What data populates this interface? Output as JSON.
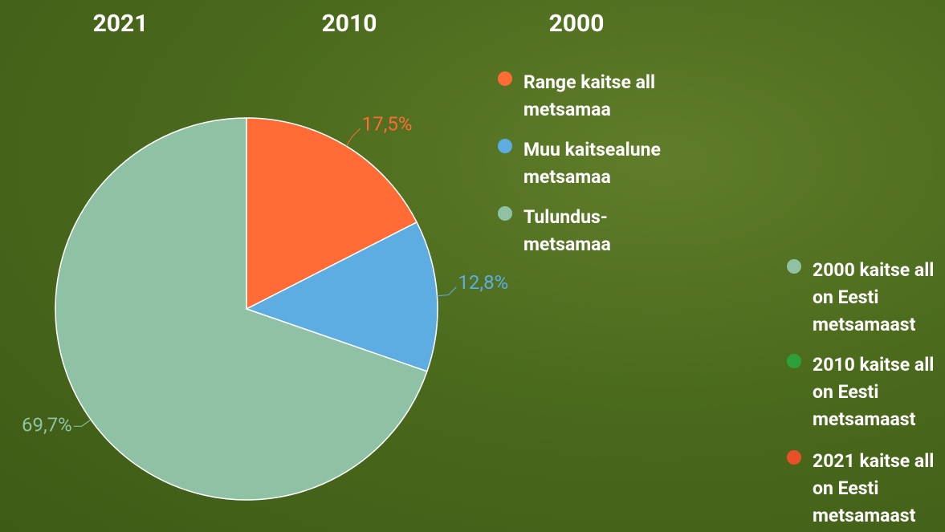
{
  "tabs": [
    "2021",
    "2010",
    "2000"
  ],
  "chart_data": {
    "type": "pie",
    "categories": [
      "Range kaitse all metsamaa",
      "Muu kaitsealune metsamaa",
      "Tulundus-metsamaa"
    ],
    "values": [
      17.5,
      12.8,
      69.7
    ],
    "value_labels": [
      "17,5%",
      "12,8%",
      "69,7%"
    ],
    "colors": [
      "#ff6b35",
      "#5dade2",
      "#8fc1a4"
    ]
  },
  "side_legend": [
    {
      "label": "2000 kaitse all on Eesti metsamaast",
      "color": "#8fc1a4"
    },
    {
      "label": "2010 kaitse all on Eesti metsamaast",
      "color": "#2ea03a"
    },
    {
      "label": "2021 kaitse all on Eesti metsamaast",
      "color": "#e8502a"
    }
  ]
}
